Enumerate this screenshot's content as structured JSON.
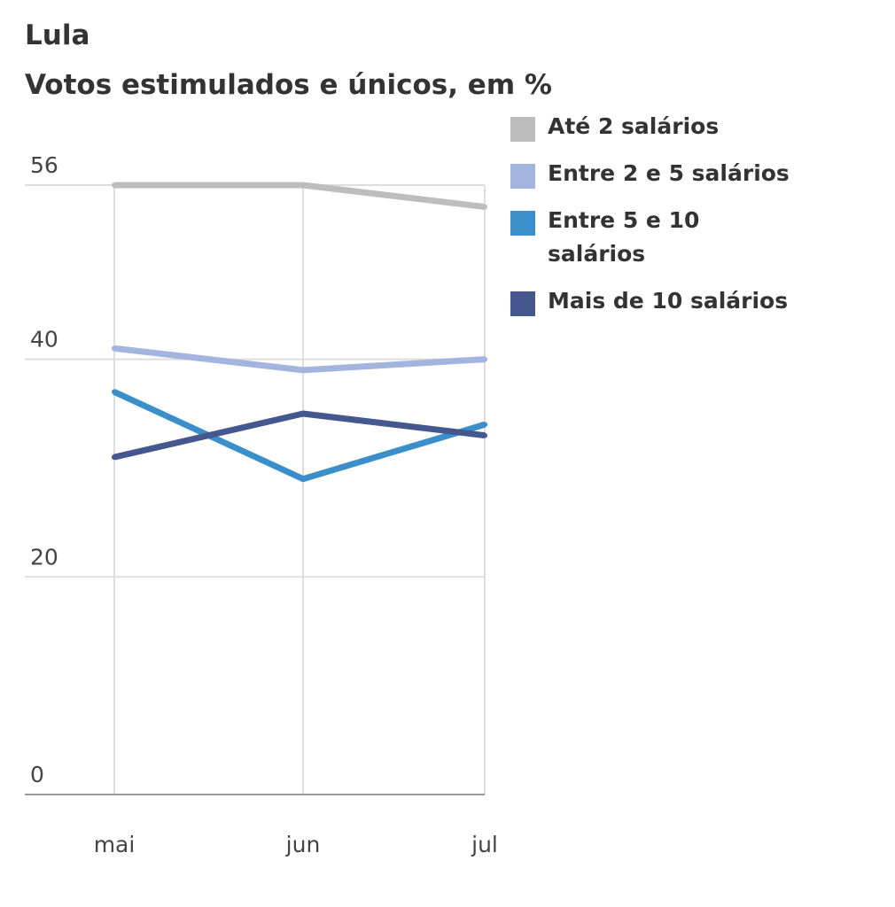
{
  "header": {
    "title": "Lula",
    "subtitle": "Votos estimulados e únicos, em %"
  },
  "chart_data": {
    "type": "line",
    "title": "Lula",
    "subtitle": "Votos estimulados e únicos, em %",
    "xlabel": "",
    "ylabel": "",
    "categories": [
      "mai",
      "jun",
      "jul"
    ],
    "ylim": [
      0,
      56
    ],
    "yticks": [
      0,
      20,
      40,
      56
    ],
    "grid": true,
    "legend_position": "right",
    "series": [
      {
        "name": "Até 2 salários",
        "color": "#bdbdbd",
        "values": [
          56,
          56,
          54
        ]
      },
      {
        "name": "Entre 2 e 5 salários",
        "color": "#a3b4de",
        "values": [
          41,
          39,
          40
        ]
      },
      {
        "name": "Entre 5 e 10 salários",
        "color": "#3a8fca",
        "values": [
          37,
          29,
          34
        ]
      },
      {
        "name": "Mais de 10 salários",
        "color": "#45578f",
        "values": [
          31,
          35,
          33
        ]
      }
    ]
  }
}
